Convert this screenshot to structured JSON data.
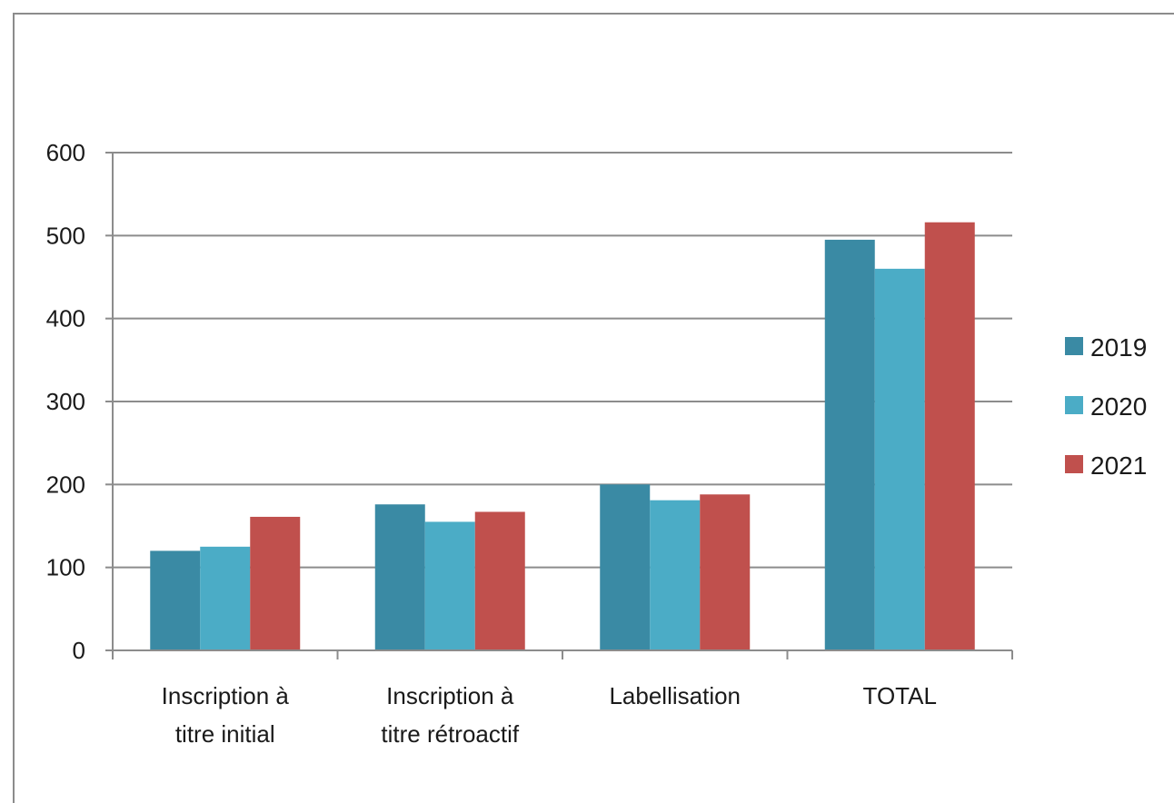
{
  "chart_data": {
    "type": "bar",
    "categories": [
      [
        "Inscription à",
        "titre initial"
      ],
      [
        "Inscription à",
        "titre rétroactif"
      ],
      [
        "Labellisation"
      ],
      [
        "TOTAL"
      ]
    ],
    "series": [
      {
        "name": "2019",
        "color": "#3a8aa4",
        "values": [
          120,
          176,
          200,
          495
        ]
      },
      {
        "name": "2020",
        "color": "#4bacc6",
        "values": [
          125,
          155,
          181,
          460
        ]
      },
      {
        "name": "2021",
        "color": "#c0504d",
        "values": [
          161,
          167,
          188,
          516
        ]
      }
    ],
    "ylim": [
      0,
      600
    ],
    "yticks": [
      0,
      100,
      200,
      300,
      400,
      500,
      600
    ],
    "grid": true,
    "legend": "right"
  }
}
